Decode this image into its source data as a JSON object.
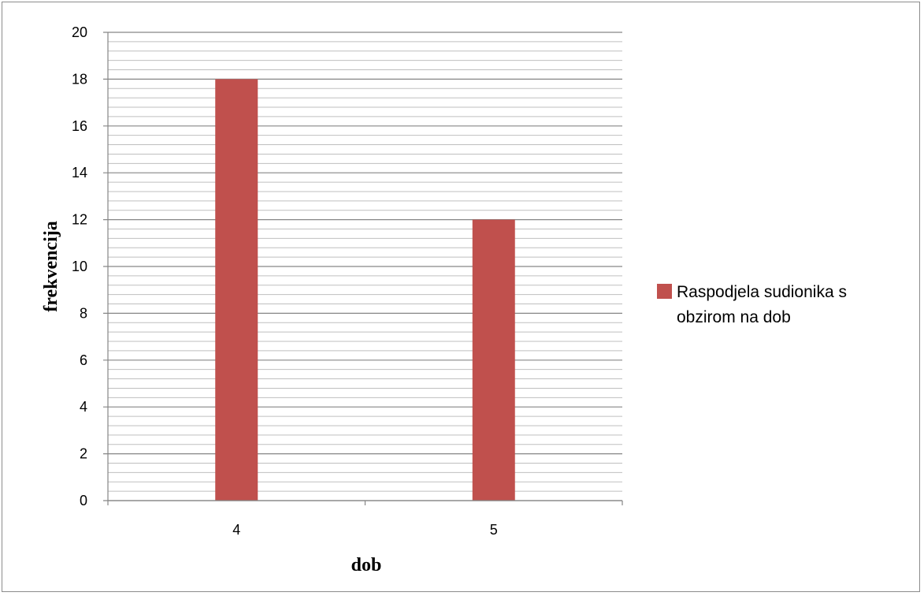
{
  "chart_data": {
    "type": "bar",
    "categories": [
      "4",
      "5"
    ],
    "series": [
      {
        "name": "Raspodjela sudionika s obzirom na dob",
        "values": [
          18,
          12
        ],
        "color": "#c0504d"
      }
    ],
    "xlabel": "dob",
    "ylabel": "frekvencija",
    "ylim": [
      0,
      20
    ],
    "y_major_ticks": [
      0,
      2,
      4,
      6,
      8,
      10,
      12,
      14,
      16,
      18,
      20
    ],
    "y_minor_step": 0.4,
    "grid": true,
    "legend_position": "right",
    "legend_lines": [
      "Raspodjela sudionika s",
      "obzirom na dob"
    ],
    "colors": {
      "bar": "#c0504d",
      "major_grid": "#868686",
      "minor_grid": "#bfbfbf",
      "axis": "#868686"
    }
  }
}
